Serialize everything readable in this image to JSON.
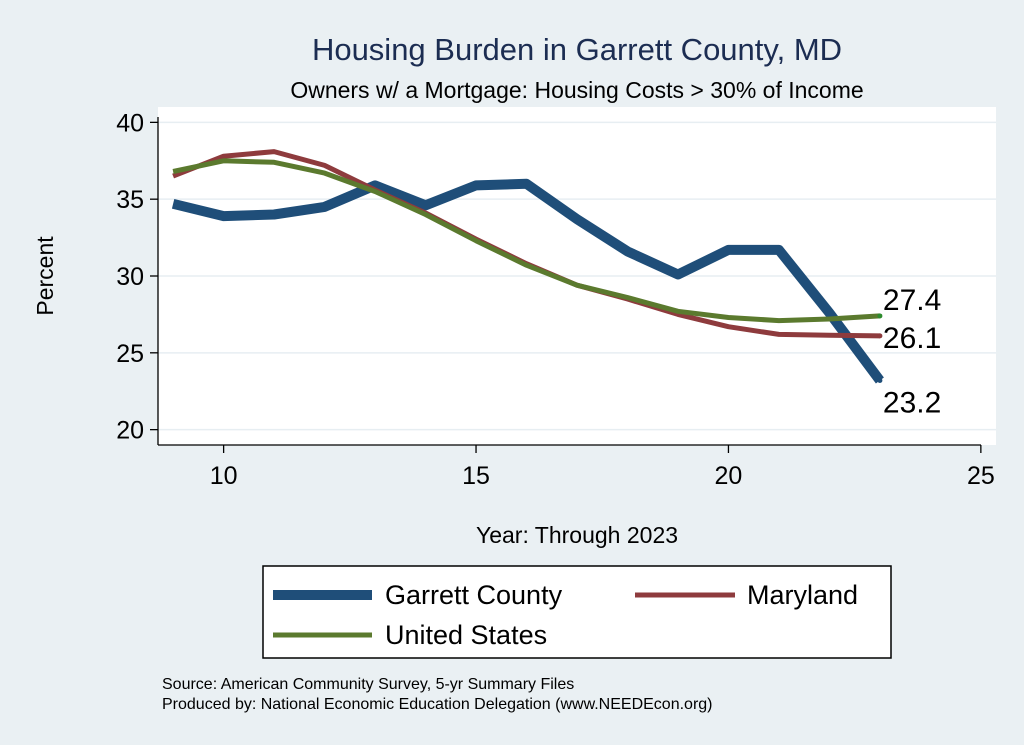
{
  "chart_data": {
    "type": "line",
    "title": "Housing Burden in Garrett County, MD",
    "subtitle": "Owners w/ a Mortgage: Housing Costs > 30% of Income",
    "xlabel": "Year: Through 2023",
    "ylabel": "Percent",
    "xlim": [
      8.7,
      25.3
    ],
    "ylim": [
      19.0,
      41.0
    ],
    "xticks": [
      "10",
      "15",
      "20",
      "25"
    ],
    "yticks": [
      "20",
      "25",
      "30",
      "35",
      "40"
    ],
    "grid": true,
    "legend_position": "bottom",
    "x": [
      9,
      10,
      11,
      12,
      13,
      14,
      15,
      16,
      17,
      18,
      19,
      20,
      21,
      22,
      23
    ],
    "series": [
      {
        "name": "Garrett County",
        "color": "#1f4e79",
        "values": [
          34.7,
          33.9,
          34.0,
          34.5,
          35.9,
          34.6,
          35.9,
          36.0,
          33.7,
          31.6,
          30.1,
          31.7,
          31.7,
          27.6,
          23.2
        ],
        "end_label": "23.2"
      },
      {
        "name": "Maryland",
        "color": "#8e3b3d",
        "values": [
          36.5,
          37.8,
          38.1,
          37.2,
          35.6,
          34.1,
          32.4,
          30.8,
          29.4,
          28.5,
          27.5,
          26.7,
          26.2,
          26.15,
          26.1
        ],
        "end_label": "26.1"
      },
      {
        "name": "United States",
        "color": "#5b7a2e",
        "values": [
          36.8,
          37.5,
          37.4,
          36.7,
          35.5,
          34.0,
          32.3,
          30.7,
          29.4,
          28.6,
          27.7,
          27.3,
          27.1,
          27.2,
          27.4
        ],
        "end_label": "27.4"
      }
    ]
  },
  "footer": {
    "source": "Source: American Community Survey, 5-yr Summary Files",
    "producer": "Produced by: National Economic Education Delegation (www.NEEDEcon.org)"
  }
}
